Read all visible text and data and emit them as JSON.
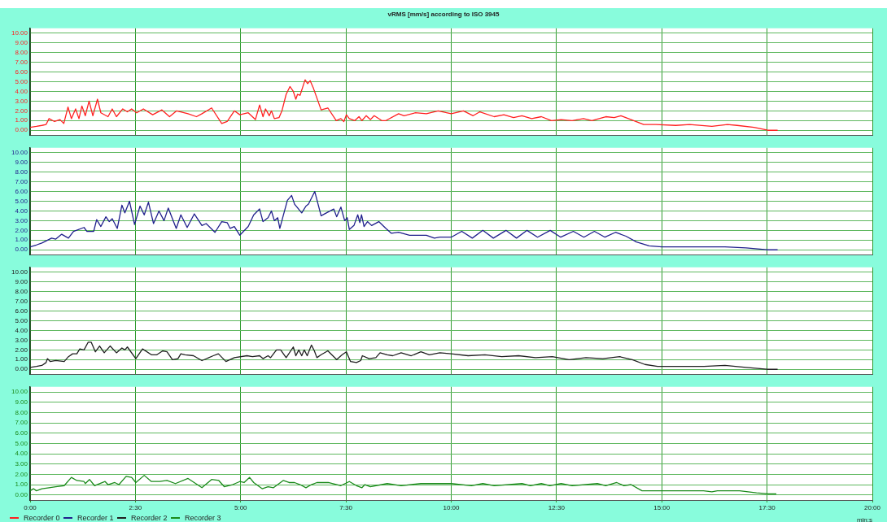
{
  "chart_data": [
    {
      "type": "line",
      "title": "vRMS [mm/s] according to ISO 3945",
      "xlim": [
        0,
        20
      ],
      "xticks": [
        {
          "value": 0,
          "label": null
        },
        {
          "value": 2.5,
          "label": null
        },
        {
          "value": 5,
          "label": null
        },
        {
          "value": 7.5,
          "label": null
        },
        {
          "value": 10,
          "label": null
        },
        {
          "value": 12.5,
          "label": null
        },
        {
          "value": 15,
          "label": null
        },
        {
          "value": 17.5,
          "label": null
        },
        {
          "value": 20,
          "label": null
        }
      ],
      "ylim": [
        -0.5,
        10.5
      ],
      "yticks": [
        {
          "value": 0,
          "label": "0.00"
        },
        {
          "value": 1,
          "label": "1.00"
        },
        {
          "value": 2,
          "label": "2.00"
        },
        {
          "value": 3,
          "label": "3.00"
        },
        {
          "value": 4,
          "label": "4.00"
        },
        {
          "value": 5,
          "label": "5.00"
        },
        {
          "value": 6,
          "label": "6.00"
        },
        {
          "value": 7,
          "label": "7.00"
        },
        {
          "value": 8,
          "label": "8.00"
        },
        {
          "value": 9,
          "label": "9.00"
        },
        {
          "value": 10,
          "label": "10.00"
        }
      ],
      "tick_labels": "y",
      "grid": true,
      "legend": "bottom",
      "marker": "none",
      "series": [
        {
          "name": "Recorder 0",
          "color": "#ff2020",
          "x": [
            0,
            0.15,
            0.28,
            0.38,
            0.45,
            0.58,
            0.71,
            0.8,
            0.9,
            0.98,
            1.08,
            1.16,
            1.23,
            1.31,
            1.4,
            1.49,
            1.6,
            1.68,
            1.85,
            1.95,
            2.05,
            2.2,
            2.31,
            2.41,
            2.53,
            2.69,
            2.91,
            3.13,
            3.31,
            3.48,
            3.75,
            3.95,
            4.08,
            4.31,
            4.55,
            4.68,
            4.85,
            4.98,
            5.18,
            5.35,
            5.45,
            5.53,
            5.59,
            5.68,
            5.73,
            5.8,
            5.91,
            5.98,
            6.08,
            6.17,
            6.25,
            6.31,
            6.35,
            6.41,
            6.47,
            6.53,
            6.59,
            6.65,
            6.73,
            6.91,
            7.07,
            7.27,
            7.38,
            7.45,
            7.51,
            7.58,
            7.71,
            7.81,
            7.88,
            7.98,
            8.08,
            8.17,
            8.35,
            8.45,
            8.75,
            8.88,
            9.15,
            9.41,
            9.69,
            10.0,
            10.29,
            10.52,
            10.68,
            11.02,
            11.25,
            11.48,
            11.68,
            11.91,
            12.14,
            12.38,
            12.61,
            12.87,
            13.14,
            13.34,
            13.67,
            13.87,
            14.03,
            14.27,
            14.57,
            14.86,
            15.33,
            15.66,
            16.19,
            16.56,
            16.79,
            17.19,
            17.52,
            17.75
          ],
          "values": [
            0.3,
            0.4,
            0.5,
            0.6,
            1.2,
            0.9,
            1.1,
            0.7,
            2.4,
            1.2,
            2.2,
            1.2,
            2.5,
            1.5,
            3.0,
            1.5,
            3.2,
            1.8,
            1.4,
            2.2,
            1.4,
            2.2,
            1.9,
            2.2,
            1.8,
            2.2,
            1.6,
            2.1,
            1.4,
            2.0,
            1.7,
            1.4,
            1.7,
            2.3,
            0.7,
            0.9,
            2.0,
            1.6,
            1.8,
            1.1,
            2.6,
            1.4,
            2.2,
            1.5,
            2.0,
            1.2,
            1.3,
            2.0,
            3.7,
            4.5,
            4.0,
            3.2,
            3.7,
            3.6,
            4.4,
            5.2,
            4.8,
            5.1,
            4.3,
            2.1,
            2.3,
            1.0,
            1.2,
            0.9,
            1.6,
            1.2,
            1.0,
            1.4,
            1.0,
            1.5,
            1.1,
            1.5,
            1.0,
            1.0,
            1.7,
            1.5,
            1.8,
            1.7,
            2.0,
            1.7,
            2.0,
            1.5,
            1.9,
            1.4,
            1.6,
            1.3,
            1.5,
            1.2,
            1.4,
            1.0,
            1.1,
            1.0,
            1.2,
            1.0,
            1.4,
            1.3,
            1.5,
            1.1,
            0.6,
            0.6,
            0.5,
            0.6,
            0.4,
            0.6,
            0.5,
            0.3,
            0.0,
            0.0
          ]
        }
      ]
    },
    {
      "type": "line",
      "xlim": [
        0,
        20
      ],
      "xticks": [
        {
          "value": 0,
          "label": null
        },
        {
          "value": 2.5,
          "label": null
        },
        {
          "value": 5,
          "label": null
        },
        {
          "value": 7.5,
          "label": null
        },
        {
          "value": 10,
          "label": null
        },
        {
          "value": 12.5,
          "label": null
        },
        {
          "value": 15,
          "label": null
        },
        {
          "value": 17.5,
          "label": null
        },
        {
          "value": 20,
          "label": null
        }
      ],
      "ylim": [
        -0.5,
        10.5
      ],
      "yticks": [
        {
          "value": 0,
          "label": "0.00"
        },
        {
          "value": 1,
          "label": "1.00"
        },
        {
          "value": 2,
          "label": "2.00"
        },
        {
          "value": 3,
          "label": "3.00"
        },
        {
          "value": 4,
          "label": "4.00"
        },
        {
          "value": 5,
          "label": "5.00"
        },
        {
          "value": 6,
          "label": "6.00"
        },
        {
          "value": 7,
          "label": "7.00"
        },
        {
          "value": 8,
          "label": "8.00"
        },
        {
          "value": 9,
          "label": "9.00"
        },
        {
          "value": 10,
          "label": "10.00"
        }
      ],
      "tick_labels": "y",
      "grid": true,
      "legend": "bottom",
      "marker": "none",
      "series": [
        {
          "name": "Recorder 1",
          "color": "#20208c",
          "x": [
            0,
            0.15,
            0.28,
            0.51,
            0.61,
            0.75,
            0.91,
            1.03,
            1.28,
            1.35,
            1.51,
            1.58,
            1.68,
            1.8,
            1.88,
            1.95,
            2.07,
            2.18,
            2.25,
            2.36,
            2.48,
            2.61,
            2.71,
            2.81,
            2.93,
            3.06,
            3.18,
            3.28,
            3.47,
            3.58,
            3.73,
            3.9,
            4.08,
            4.18,
            4.39,
            4.55,
            4.68,
            4.75,
            4.85,
            4.98,
            5.18,
            5.31,
            5.45,
            5.53,
            5.65,
            5.73,
            5.8,
            5.88,
            5.93,
            6.01,
            6.11,
            6.21,
            6.28,
            6.45,
            6.55,
            6.61,
            6.76,
            6.91,
            7.08,
            7.21,
            7.28,
            7.38,
            7.47,
            7.53,
            7.58,
            7.69,
            7.78,
            7.83,
            7.87,
            7.93,
            8.01,
            8.11,
            8.28,
            8.45,
            8.58,
            8.75,
            9.01,
            9.41,
            9.6,
            9.73,
            10.0,
            10.25,
            10.5,
            10.75,
            11.0,
            11.3,
            11.55,
            11.8,
            12.05,
            12.35,
            12.6,
            12.9,
            13.15,
            13.4,
            13.65,
            13.9,
            14.15,
            14.4,
            14.7,
            15.0,
            15.5,
            16.0,
            16.5,
            17.0,
            17.5,
            17.75
          ],
          "values": [
            0.3,
            0.5,
            0.7,
            1.2,
            1.1,
            1.6,
            1.2,
            1.9,
            2.3,
            1.9,
            1.9,
            3.1,
            2.4,
            3.4,
            2.9,
            3.2,
            2.2,
            4.6,
            3.8,
            5.0,
            2.6,
            4.5,
            3.6,
            4.9,
            2.7,
            4.0,
            3.0,
            4.3,
            2.2,
            3.6,
            2.3,
            3.7,
            2.5,
            2.7,
            1.8,
            2.9,
            2.8,
            2.2,
            2.4,
            1.5,
            2.4,
            3.6,
            4.2,
            2.9,
            3.3,
            4.0,
            3.0,
            3.3,
            2.2,
            3.5,
            5.1,
            5.6,
            4.7,
            3.8,
            4.5,
            4.7,
            6.0,
            3.5,
            3.9,
            4.2,
            3.4,
            4.4,
            3.0,
            3.3,
            2.1,
            2.5,
            3.6,
            2.8,
            3.6,
            2.4,
            2.9,
            2.5,
            2.9,
            2.2,
            1.7,
            1.8,
            1.5,
            1.5,
            1.2,
            1.3,
            1.3,
            1.9,
            1.2,
            2.0,
            1.2,
            2.0,
            1.2,
            2.0,
            1.3,
            2.0,
            1.3,
            1.9,
            1.3,
            1.9,
            1.3,
            1.8,
            1.4,
            0.8,
            0.4,
            0.3,
            0.3,
            0.3,
            0.3,
            0.2,
            0.0,
            0.0
          ]
        }
      ]
    },
    {
      "type": "line",
      "xlim": [
        0,
        20
      ],
      "xticks": [
        {
          "value": 0,
          "label": null
        },
        {
          "value": 2.5,
          "label": null
        },
        {
          "value": 5,
          "label": null
        },
        {
          "value": 7.5,
          "label": null
        },
        {
          "value": 10,
          "label": null
        },
        {
          "value": 12.5,
          "label": null
        },
        {
          "value": 15,
          "label": null
        },
        {
          "value": 17.5,
          "label": null
        },
        {
          "value": 20,
          "label": null
        }
      ],
      "ylim": [
        -0.5,
        10.5
      ],
      "yticks": [
        {
          "value": 0,
          "label": "0.00"
        },
        {
          "value": 1,
          "label": "1.00"
        },
        {
          "value": 2,
          "label": "2.00"
        },
        {
          "value": 3,
          "label": "3.00"
        },
        {
          "value": 4,
          "label": "4.00"
        },
        {
          "value": 5,
          "label": "5.00"
        },
        {
          "value": 6,
          "label": "6.00"
        },
        {
          "value": 7,
          "label": "7.00"
        },
        {
          "value": 8,
          "label": "8.00"
        },
        {
          "value": 9,
          "label": "9.00"
        },
        {
          "value": 10,
          "label": "10.00"
        }
      ],
      "tick_labels": "y",
      "grid": true,
      "legend": "bottom",
      "marker": "none",
      "series": [
        {
          "name": "Recorder 2",
          "color": "#202020",
          "x": [
            0,
            0.15,
            0.28,
            0.38,
            0.41,
            0.48,
            0.61,
            0.81,
            0.91,
            1.01,
            1.11,
            1.18,
            1.28,
            1.38,
            1.45,
            1.55,
            1.65,
            1.76,
            1.9,
            2.05,
            2.18,
            2.25,
            2.31,
            2.51,
            2.67,
            2.88,
            3.01,
            3.15,
            3.25,
            3.38,
            3.51,
            3.58,
            3.68,
            3.88,
            4.08,
            4.35,
            4.47,
            4.65,
            4.85,
            5.15,
            5.28,
            5.45,
            5.53,
            5.65,
            5.71,
            5.85,
            5.95,
            6.08,
            6.25,
            6.31,
            6.38,
            6.45,
            6.51,
            6.58,
            6.68,
            6.75,
            6.81,
            6.91,
            7.07,
            7.28,
            7.41,
            7.51,
            7.61,
            7.75,
            7.85,
            7.89,
            8.05,
            8.21,
            8.31,
            8.48,
            8.61,
            8.81,
            9.05,
            9.28,
            9.48,
            9.73,
            10.0,
            10.4,
            10.8,
            11.2,
            11.6,
            12.0,
            12.4,
            12.8,
            13.2,
            13.6,
            14.0,
            14.3,
            14.6,
            14.9,
            15.5,
            16.0,
            16.5,
            17.0,
            17.5,
            17.75
          ],
          "values": [
            0.2,
            0.3,
            0.4,
            0.7,
            1.1,
            0.8,
            0.9,
            0.8,
            1.3,
            1.6,
            1.6,
            2.1,
            2.0,
            2.8,
            2.8,
            1.8,
            2.4,
            1.7,
            2.4,
            1.7,
            2.2,
            2.0,
            2.3,
            1.1,
            2.1,
            1.5,
            1.5,
            1.9,
            1.8,
            1.0,
            1.1,
            1.6,
            1.5,
            1.4,
            0.9,
            1.4,
            1.6,
            0.8,
            1.2,
            1.4,
            1.3,
            1.4,
            1.1,
            1.4,
            1.2,
            2.0,
            2.0,
            1.2,
            2.3,
            1.4,
            2.0,
            1.4,
            2.0,
            1.4,
            2.5,
            1.9,
            1.2,
            1.5,
            1.9,
            1.0,
            1.5,
            1.8,
            0.8,
            0.7,
            0.9,
            1.4,
            1.1,
            1.2,
            1.7,
            1.5,
            1.4,
            1.7,
            1.4,
            1.8,
            1.5,
            1.7,
            1.6,
            1.4,
            1.5,
            1.3,
            1.4,
            1.2,
            1.3,
            1.0,
            1.2,
            1.1,
            1.3,
            1.0,
            0.5,
            0.3,
            0.3,
            0.3,
            0.4,
            0.2,
            0.0,
            0.0
          ]
        }
      ]
    },
    {
      "type": "line",
      "xlabel": "min:s",
      "xlim": [
        0,
        20
      ],
      "xticks": [
        {
          "value": 0,
          "label": "0:00"
        },
        {
          "value": 2.5,
          "label": "2:30"
        },
        {
          "value": 5,
          "label": "5:00"
        },
        {
          "value": 7.5,
          "label": "7:30"
        },
        {
          "value": 10,
          "label": "10:00"
        },
        {
          "value": 12.5,
          "label": "12:30"
        },
        {
          "value": 15,
          "label": "15:00"
        },
        {
          "value": 17.5,
          "label": "17:30"
        },
        {
          "value": 20,
          "label": "20:00"
        }
      ],
      "ylim": [
        -0.5,
        10.5
      ],
      "yticks": [
        {
          "value": 0,
          "label": "0.00"
        },
        {
          "value": 1,
          "label": "1.00"
        },
        {
          "value": 2,
          "label": "2.00"
        },
        {
          "value": 3,
          "label": "3.00"
        },
        {
          "value": 4,
          "label": "4.00"
        },
        {
          "value": 5,
          "label": "5.00"
        },
        {
          "value": 6,
          "label": "6.00"
        },
        {
          "value": 7,
          "label": "7.00"
        },
        {
          "value": 8,
          "label": "8.00"
        },
        {
          "value": 9,
          "label": "9.00"
        },
        {
          "value": 10,
          "label": "10.00"
        }
      ],
      "grid": true,
      "legend": "bottom",
      "marker": "none",
      "series": [
        {
          "name": "Recorder 3",
          "color": "#1a8a1a",
          "x": [
            0,
            0.08,
            0.15,
            0.28,
            0.45,
            0.61,
            0.81,
            0.98,
            1.11,
            1.28,
            1.31,
            1.41,
            1.53,
            1.78,
            1.85,
            2.01,
            2.11,
            2.28,
            2.41,
            2.51,
            2.71,
            2.88,
            3.08,
            3.25,
            3.45,
            3.75,
            4.08,
            4.31,
            4.48,
            4.61,
            4.81,
            4.98,
            5.08,
            5.21,
            5.31,
            5.51,
            5.65,
            5.78,
            6.01,
            6.15,
            6.28,
            6.41,
            6.55,
            6.68,
            6.81,
            7.08,
            7.38,
            7.58,
            7.75,
            7.88,
            7.95,
            8.08,
            8.48,
            8.81,
            9.28,
            9.73,
            10.0,
            10.48,
            10.75,
            11.02,
            11.68,
            11.88,
            12.14,
            12.34,
            12.61,
            12.87,
            13.47,
            13.67,
            13.93,
            14.1,
            14.27,
            14.53,
            15.0,
            15.66,
            15.99,
            16.19,
            16.32,
            16.85,
            17.25,
            17.52,
            17.72
          ],
          "values": [
            0.4,
            0.6,
            0.4,
            0.6,
            0.7,
            0.8,
            0.9,
            1.7,
            1.4,
            1.3,
            1.1,
            1.5,
            0.9,
            1.3,
            1.0,
            1.2,
            1.0,
            1.8,
            1.7,
            1.2,
            1.9,
            1.3,
            1.3,
            1.4,
            1.1,
            1.6,
            0.7,
            1.5,
            1.4,
            0.8,
            1.0,
            1.3,
            1.2,
            1.7,
            1.2,
            0.6,
            0.8,
            0.7,
            1.4,
            1.2,
            1.2,
            1.0,
            0.7,
            1.0,
            1.2,
            1.2,
            0.9,
            1.3,
            0.9,
            0.7,
            1.0,
            0.8,
            1.1,
            0.9,
            1.1,
            1.1,
            1.1,
            0.9,
            1.1,
            0.9,
            1.1,
            0.9,
            1.1,
            0.9,
            1.1,
            0.9,
            1.1,
            0.9,
            1.2,
            0.9,
            1.0,
            0.4,
            0.4,
            0.4,
            0.4,
            0.3,
            0.4,
            0.4,
            0.2,
            0.1,
            0.1
          ]
        }
      ]
    }
  ]
}
